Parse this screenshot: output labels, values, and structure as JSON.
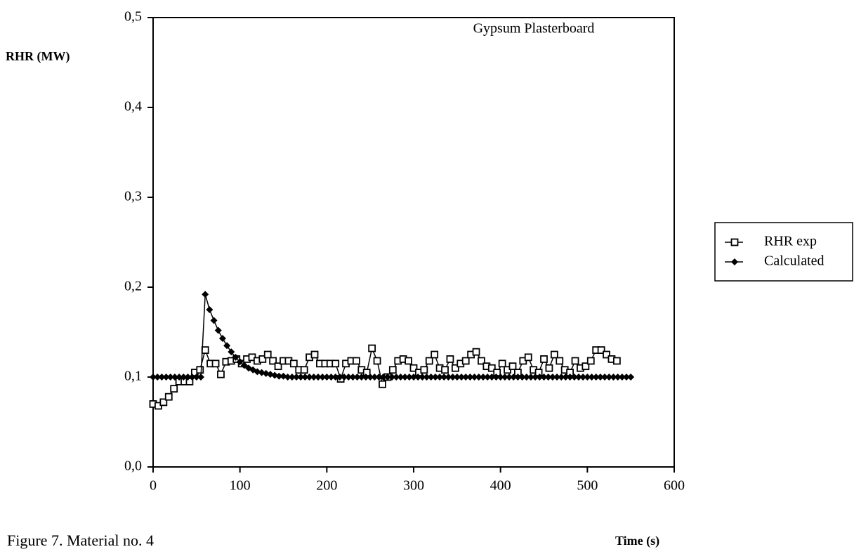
{
  "chart_data": {
    "type": "line",
    "annotation": "Gypsum Plasterboard",
    "y_label": "RHR (MW)",
    "x_label": "Time (s)",
    "caption": "Figure 7.  Material no. 4",
    "xlim": [
      0,
      600
    ],
    "xticks": [
      0,
      100,
      200,
      300,
      400,
      500,
      600
    ],
    "ylim": [
      0,
      0.5
    ],
    "yticks": [
      {
        "value": 0,
        "label": "0,0"
      },
      {
        "value": 0.1,
        "label": "0,1"
      },
      {
        "value": 0.2,
        "label": "0,2"
      },
      {
        "value": 0.3,
        "label": "0,3"
      },
      {
        "value": 0.4,
        "label": "0,4"
      },
      {
        "value": 0.5,
        "label": "0,5"
      }
    ],
    "legend": "right",
    "series": [
      {
        "name": "RHR exp",
        "color": "#000000",
        "marker": "square",
        "x": [
          0,
          6,
          12,
          18,
          24,
          30,
          36,
          42,
          48,
          54,
          60,
          66,
          72,
          78,
          84,
          90,
          96,
          102,
          108,
          114,
          120,
          126,
          132,
          138,
          144,
          150,
          156,
          162,
          168,
          174,
          180,
          186,
          192,
          198,
          204,
          210,
          216,
          222,
          228,
          234,
          240,
          246,
          252,
          258,
          264,
          270,
          276,
          282,
          288,
          294,
          300,
          306,
          312,
          318,
          324,
          330,
          336,
          342,
          348,
          354,
          360,
          366,
          372,
          378,
          384,
          390,
          396,
          402,
          408,
          414,
          420,
          426,
          432,
          438,
          444,
          450,
          456,
          462,
          468,
          474,
          480,
          486,
          492,
          498,
          504,
          510,
          516,
          522,
          528,
          534
        ],
        "values": [
          0.07,
          0.068,
          0.072,
          0.078,
          0.087,
          0.095,
          0.095,
          0.095,
          0.105,
          0.108,
          0.13,
          0.115,
          0.115,
          0.103,
          0.117,
          0.118,
          0.12,
          0.115,
          0.12,
          0.122,
          0.118,
          0.12,
          0.125,
          0.118,
          0.112,
          0.118,
          0.118,
          0.115,
          0.108,
          0.108,
          0.122,
          0.125,
          0.115,
          0.115,
          0.115,
          0.115,
          0.098,
          0.115,
          0.118,
          0.118,
          0.108,
          0.105,
          0.132,
          0.118,
          0.092,
          0.1,
          0.108,
          0.118,
          0.12,
          0.118,
          0.11,
          0.105,
          0.108,
          0.118,
          0.125,
          0.11,
          0.108,
          0.12,
          0.11,
          0.115,
          0.118,
          0.125,
          0.128,
          0.118,
          0.112,
          0.11,
          0.105,
          0.115,
          0.108,
          0.112,
          0.105,
          0.118,
          0.122,
          0.108,
          0.105,
          0.12,
          0.11,
          0.125,
          0.118,
          0.108,
          0.105,
          0.118,
          0.11,
          0.112,
          0.118,
          0.13,
          0.13,
          0.125,
          0.12,
          0.118
        ]
      },
      {
        "name": "Calculated",
        "color": "#000000",
        "marker": "diamond",
        "x": [
          0,
          5,
          10,
          15,
          20,
          25,
          30,
          35,
          40,
          45,
          50,
          55,
          60,
          65,
          70,
          75,
          80,
          85,
          90,
          95,
          100,
          105,
          110,
          115,
          120,
          125,
          130,
          135,
          140,
          145,
          150,
          155,
          160,
          165,
          170,
          175,
          180,
          185,
          190,
          195,
          200,
          205,
          210,
          215,
          220,
          225,
          230,
          235,
          240,
          245,
          250,
          255,
          260,
          265,
          270,
          275,
          280,
          285,
          290,
          295,
          300,
          305,
          310,
          315,
          320,
          325,
          330,
          335,
          340,
          345,
          350,
          355,
          360,
          365,
          370,
          375,
          380,
          385,
          390,
          395,
          400,
          405,
          410,
          415,
          420,
          425,
          430,
          435,
          440,
          445,
          450,
          455,
          460,
          465,
          470,
          475,
          480,
          485,
          490,
          495,
          500,
          505,
          510,
          515,
          520,
          525,
          530,
          535,
          540,
          545,
          550
        ],
        "values": [
          0.1,
          0.1,
          0.1,
          0.1,
          0.1,
          0.1,
          0.1,
          0.1,
          0.1,
          0.1,
          0.1,
          0.1,
          0.192,
          0.175,
          0.163,
          0.152,
          0.143,
          0.135,
          0.128,
          0.122,
          0.117,
          0.113,
          0.11,
          0.108,
          0.106,
          0.105,
          0.104,
          0.103,
          0.102,
          0.101,
          0.101,
          0.1,
          0.1,
          0.1,
          0.1,
          0.1,
          0.1,
          0.1,
          0.1,
          0.1,
          0.1,
          0.1,
          0.1,
          0.1,
          0.1,
          0.1,
          0.1,
          0.1,
          0.1,
          0.1,
          0.1,
          0.1,
          0.1,
          0.1,
          0.1,
          0.1,
          0.1,
          0.1,
          0.1,
          0.1,
          0.1,
          0.1,
          0.1,
          0.1,
          0.1,
          0.1,
          0.1,
          0.1,
          0.1,
          0.1,
          0.1,
          0.1,
          0.1,
          0.1,
          0.1,
          0.1,
          0.1,
          0.1,
          0.1,
          0.1,
          0.1,
          0.1,
          0.1,
          0.1,
          0.1,
          0.1,
          0.1,
          0.1,
          0.1,
          0.1,
          0.1,
          0.1,
          0.1,
          0.1,
          0.1,
          0.1,
          0.1,
          0.1,
          0.1,
          0.1,
          0.1,
          0.1,
          0.1,
          0.1,
          0.1,
          0.1,
          0.1,
          0.1,
          0.1,
          0.1,
          0.1
        ]
      }
    ]
  }
}
